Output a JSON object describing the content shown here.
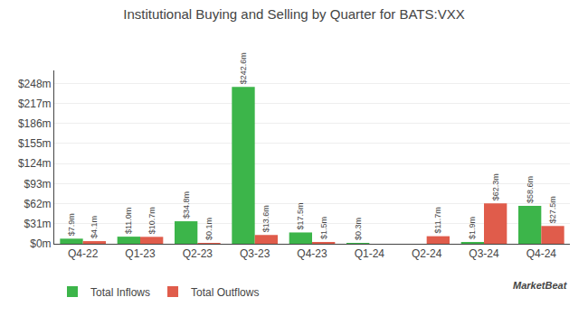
{
  "chart_data": {
    "type": "bar",
    "title": "Institutional Buying and Selling by Quarter for BATS:VXX",
    "categories": [
      "Q4-22",
      "Q1-23",
      "Q2-23",
      "Q3-23",
      "Q4-23",
      "Q1-24",
      "Q2-24",
      "Q3-24",
      "Q4-24"
    ],
    "series": [
      {
        "name": "Total Inflows",
        "color": "#3cb54a",
        "values": [
          7.9,
          11.0,
          34.8,
          242.6,
          17.5,
          0.3,
          0.0,
          1.9,
          58.6
        ],
        "value_labels": [
          "$7.9m",
          "$11.0m",
          "$34.8m",
          "$242.6m",
          "$17.5m",
          "$0.3m",
          null,
          "$1.9m",
          "$58.6m"
        ]
      },
      {
        "name": "Total Outflows",
        "color": "#e05c4b",
        "values": [
          4.1,
          10.7,
          0.1,
          13.6,
          1.5,
          0.0,
          11.7,
          62.3,
          27.5
        ],
        "value_labels": [
          "$4.1m",
          "$10.7m",
          "$0.1m",
          "$13.6m",
          "$1.5m",
          null,
          "$11.7m",
          "$62.3m",
          "$27.5m"
        ]
      }
    ],
    "ylim": [
      0,
      268
    ],
    "yticks": [
      {
        "value": 0,
        "label": "$0m"
      },
      {
        "value": 31,
        "label": "$31m"
      },
      {
        "value": 62,
        "label": "$62m"
      },
      {
        "value": 93,
        "label": "$93m"
      },
      {
        "value": 124,
        "label": "$124m"
      },
      {
        "value": 155,
        "label": "$155m"
      },
      {
        "value": 186,
        "label": "$186m"
      },
      {
        "value": 217,
        "label": "$217m"
      },
      {
        "value": 248,
        "label": "$248m"
      }
    ],
    "grid": true,
    "legend": "lower left",
    "data_labels": true,
    "annotations": [
      "MarketBeat"
    ]
  }
}
